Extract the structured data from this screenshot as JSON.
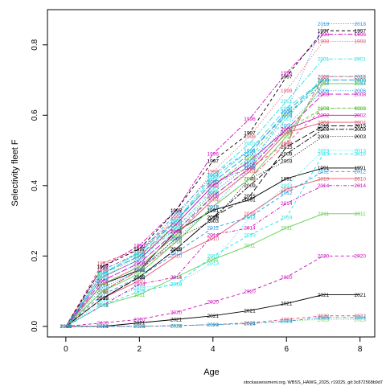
{
  "chart_data": {
    "type": "line",
    "xlabel": "Age",
    "ylabel": "Selectivity fleet F",
    "xlim": [
      -0.5,
      8.4
    ],
    "ylim": [
      -0.03,
      0.9
    ],
    "x_ticks": [
      0,
      2,
      4,
      6,
      8
    ],
    "y_ticks": [
      0.0,
      0.2,
      0.4,
      0.6,
      0.8
    ],
    "x": [
      0,
      1,
      2,
      3,
      4,
      5,
      6,
      7,
      8
    ],
    "grid": false,
    "footer": "stockassessment.org, WBSS_HAWG_2025, r19325, git:3c872568b9d7",
    "series": [
      {
        "name": "1991",
        "color": "#000000",
        "dash": "solid",
        "values": [
          0.0,
          0.12,
          0.16,
          0.27,
          0.33,
          0.36,
          0.42,
          0.45,
          0.45
        ]
      },
      {
        "name": "1992",
        "color": "#DF536B",
        "dash": "dash",
        "values": [
          0.0,
          0.18,
          0.22,
          0.3,
          0.41,
          0.45,
          0.52,
          0.62,
          0.62
        ]
      },
      {
        "name": "1993",
        "color": "#61D04F",
        "dash": "dot",
        "values": [
          0.0,
          0.14,
          0.2,
          0.28,
          0.38,
          0.46,
          0.55,
          0.62,
          0.62
        ]
      },
      {
        "name": "1994",
        "color": "#2297E6",
        "dash": "dotdash",
        "values": [
          0.0,
          0.16,
          0.21,
          0.32,
          0.43,
          0.5,
          0.6,
          0.69,
          0.69
        ]
      },
      {
        "name": "1995",
        "color": "#28E2E5",
        "dash": "longdash",
        "values": [
          0.0,
          0.15,
          0.21,
          0.3,
          0.42,
          0.5,
          0.62,
          0.7,
          0.7
        ]
      },
      {
        "name": "1996",
        "color": "#CD0BBC",
        "dash": "twodash",
        "values": [
          0.0,
          0.17,
          0.23,
          0.33,
          0.49,
          0.59,
          0.72,
          0.83,
          0.83
        ]
      },
      {
        "name": "1997",
        "color": "#000000",
        "dash": "dash",
        "values": [
          0.0,
          0.17,
          0.22,
          0.33,
          0.47,
          0.55,
          0.71,
          0.84,
          0.84
        ]
      },
      {
        "name": "1998",
        "color": "#DF536B",
        "dash": "dot",
        "values": [
          0.0,
          0.16,
          0.21,
          0.31,
          0.44,
          0.54,
          0.67,
          0.81,
          0.81
        ]
      },
      {
        "name": "1999",
        "color": "#61D04F",
        "dash": "dotdash",
        "values": [
          0.0,
          0.15,
          0.2,
          0.29,
          0.4,
          0.48,
          0.6,
          0.7,
          0.7
        ]
      },
      {
        "name": "2000",
        "color": "#2297E6",
        "dash": "longdash",
        "values": [
          0.0,
          0.15,
          0.2,
          0.3,
          0.41,
          0.49,
          0.61,
          0.7,
          0.7
        ]
      },
      {
        "name": "2001",
        "color": "#28E2E5",
        "dash": "twodash",
        "values": [
          0.0,
          0.15,
          0.21,
          0.3,
          0.43,
          0.52,
          0.64,
          0.76,
          0.76
        ]
      },
      {
        "name": "2002",
        "color": "#CD0BBC",
        "dash": "solid",
        "values": [
          0.0,
          0.14,
          0.19,
          0.29,
          0.4,
          0.47,
          0.56,
          0.6,
          0.6
        ]
      },
      {
        "name": "2003",
        "color": "#000000",
        "dash": "dot",
        "values": [
          0.0,
          0.1,
          0.16,
          0.25,
          0.3,
          0.42,
          0.47,
          0.54,
          0.54
        ]
      },
      {
        "name": "2004",
        "color": "#DF536B",
        "dash": "solid",
        "values": [
          0.0,
          0.12,
          0.17,
          0.26,
          0.36,
          0.44,
          0.55,
          0.58,
          0.58
        ]
      },
      {
        "name": "2005",
        "color": "#61D04F",
        "dash": "dash",
        "values": [
          0.0,
          0.12,
          0.17,
          0.26,
          0.37,
          0.45,
          0.56,
          0.62,
          0.62
        ]
      },
      {
        "name": "2006",
        "color": "#2297E6",
        "dash": "dot",
        "values": [
          0.0,
          0.13,
          0.18,
          0.27,
          0.38,
          0.46,
          0.57,
          0.67,
          0.67
        ]
      },
      {
        "name": "2007",
        "color": "#28E2E5",
        "dash": "dotdash",
        "values": [
          0.0,
          0.14,
          0.19,
          0.28,
          0.39,
          0.47,
          0.59,
          0.71,
          0.71
        ]
      },
      {
        "name": "2008",
        "color": "#CD0BBC",
        "dash": "longdash",
        "values": [
          0.0,
          0.13,
          0.18,
          0.27,
          0.37,
          0.45,
          0.56,
          0.66,
          0.66
        ]
      },
      {
        "name": "2009",
        "color": "#000000",
        "dash": "twodash",
        "values": [
          0.0,
          0.08,
          0.14,
          0.22,
          0.31,
          0.4,
          0.49,
          0.56,
          0.56
        ]
      },
      {
        "name": "2010",
        "color": "#DF536B",
        "dash": "solid",
        "values": [
          0.0,
          0.08,
          0.13,
          0.2,
          0.25,
          0.32,
          0.39,
          0.42,
          0.42
        ]
      },
      {
        "name": "2011",
        "color": "#61D04F",
        "dash": "solid",
        "values": [
          0.0,
          0.06,
          0.09,
          0.14,
          0.19,
          0.23,
          0.28,
          0.32,
          0.32
        ]
      },
      {
        "name": "2012",
        "color": "#2297E6",
        "dash": "dash",
        "values": [
          0.0,
          0.09,
          0.14,
          0.21,
          0.28,
          0.31,
          0.38,
          0.44,
          0.44
        ]
      },
      {
        "name": "2013",
        "color": "#28E2E5",
        "dash": "dot",
        "values": [
          0.0,
          0.07,
          0.11,
          0.12,
          0.18,
          0.31,
          0.4,
          0.5,
          0.5
        ]
      },
      {
        "name": "2014",
        "color": "#CD0BBC",
        "dash": "dotdash",
        "values": [
          0.0,
          0.06,
          0.12,
          0.14,
          0.26,
          0.28,
          0.35,
          0.4,
          0.4
        ]
      },
      {
        "name": "2015",
        "color": "#000000",
        "dash": "longdash",
        "values": [
          0.0,
          0.08,
          0.14,
          0.22,
          0.31,
          0.37,
          0.51,
          0.57,
          0.57
        ]
      },
      {
        "name": "2016",
        "color": "#DF536B",
        "dash": "twodash",
        "values": [
          0.0,
          0.1,
          0.16,
          0.24,
          0.34,
          0.42,
          0.52,
          0.71,
          0.71
        ]
      },
      {
        "name": "2017",
        "color": "#61D04F",
        "dash": "solid",
        "values": [
          0.0,
          0.1,
          0.15,
          0.24,
          0.34,
          0.42,
          0.54,
          0.69,
          0.69
        ]
      },
      {
        "name": "2018",
        "color": "#2297E6",
        "dash": "dot",
        "values": [
          0.0,
          0.11,
          0.16,
          0.25,
          0.34,
          0.45,
          0.61,
          0.86,
          0.86
        ]
      },
      {
        "name": "2019",
        "color": "#28E2E5",
        "dash": "dash",
        "values": [
          0.0,
          0.06,
          0.1,
          0.12,
          0.2,
          0.26,
          0.31,
          0.49,
          0.49
        ]
      },
      {
        "name": "2020",
        "color": "#CD0BBC",
        "dash": "dash",
        "values": [
          0.0,
          0.01,
          0.02,
          0.04,
          0.07,
          0.1,
          0.14,
          0.2,
          0.2
        ]
      },
      {
        "name": "2021",
        "color": "#000000",
        "dash": "solid",
        "values": [
          0.0,
          0.0,
          0.01,
          0.02,
          0.03,
          0.045,
          0.065,
          0.09,
          0.09
        ]
      },
      {
        "name": "2022",
        "color": "#DF536B",
        "dash": "dash",
        "values": [
          0.0,
          0.0,
          0.0,
          0.002,
          0.005,
          0.01,
          0.02,
          0.03,
          0.03
        ]
      },
      {
        "name": "2023",
        "color": "#61D04F",
        "dash": "dot",
        "values": [
          0.0,
          0.0,
          0.0,
          0.002,
          0.005,
          0.008,
          0.015,
          0.02,
          0.02
        ]
      },
      {
        "name": "2024",
        "color": "#2297E6",
        "dash": "dotdash",
        "values": [
          0.0,
          0.0,
          0.0,
          0.002,
          0.005,
          0.008,
          0.015,
          0.025,
          0.025
        ]
      }
    ]
  }
}
